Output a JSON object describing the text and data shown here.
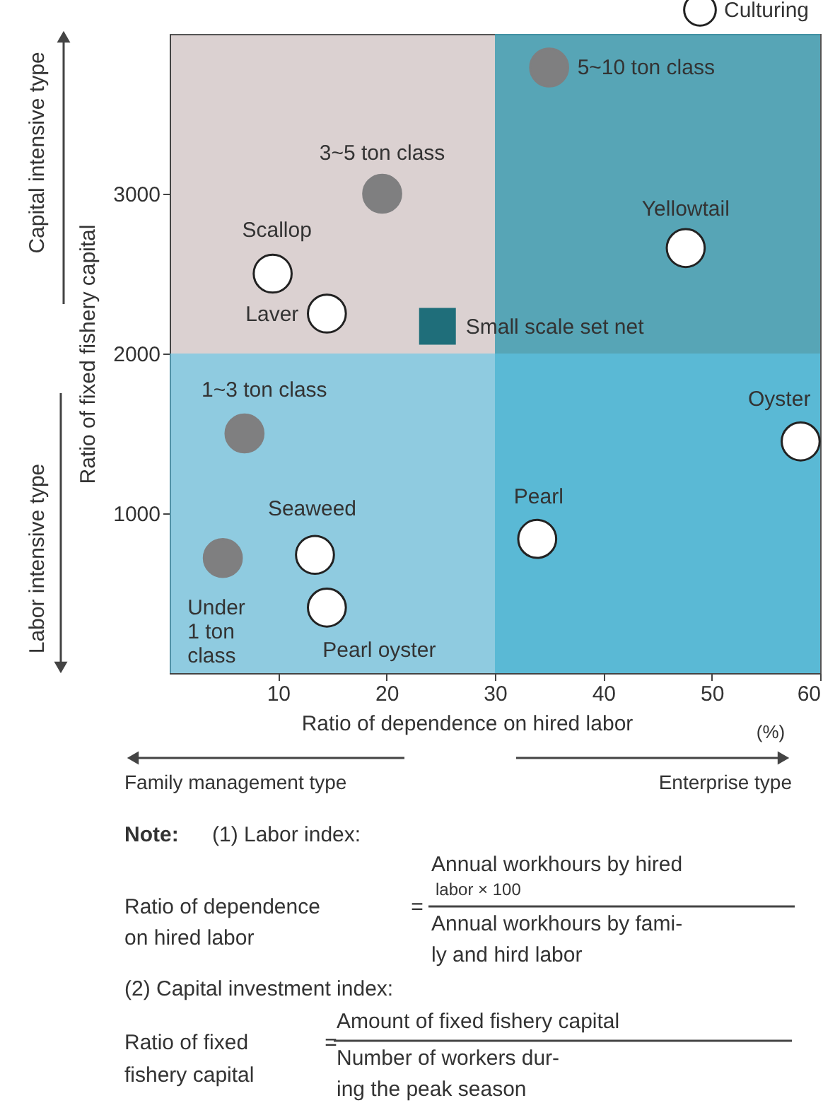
{
  "chart_data": {
    "type": "scatter",
    "xlabel": "Ratio of dependence on hired labor",
    "ylabel": "Ratio of fixed fishery capital",
    "xlim": [
      0,
      60
    ],
    "xticks": [
      10,
      20,
      30,
      40,
      50,
      60
    ],
    "ylim": [
      0,
      4000
    ],
    "yticks": [
      {
        "value": 1000,
        "label": "1000"
      },
      {
        "value": 2000,
        "label": "2000"
      },
      {
        "value": 3000,
        "label": "3000"
      }
    ],
    "grid": false,
    "legend": "top right",
    "bands": [
      {
        "axis": "x",
        "from": 30,
        "to": 60,
        "color": "#3f9db2"
      },
      {
        "axis": "y",
        "from": 0,
        "to": 2000,
        "color": "#5cc7ea"
      }
    ],
    "series": [
      {
        "color": "#7f7f80",
        "marker": "circle",
        "x": [
          35,
          19.6,
          6.9,
          4.9
        ],
        "values": [
          3790,
          3000,
          1500,
          720
        ]
      },
      {
        "name": "Culturing",
        "color": "#ffffff",
        "marker": "circle",
        "x": [
          9.5,
          14.5,
          47.6,
          58.2,
          13.4,
          14.5,
          33.9
        ],
        "values": [
          2500,
          2250,
          2660,
          1450,
          740,
          410,
          840
        ]
      },
      {
        "name": "Small scale set net",
        "color": "#1f6e7a",
        "marker": "square",
        "x": [
          24.7
        ],
        "values": [
          2170
        ]
      }
    ],
    "annotations": [
      {
        "text": "5~10 ton class",
        "x": 35,
        "y": 3790
      },
      {
        "text": "3~5 ton class",
        "x": 19.6,
        "y": 3000
      },
      {
        "text": "Scallop",
        "x": 9.5,
        "y": 2500
      },
      {
        "text": "Laver",
        "x": 14.5,
        "y": 2250
      },
      {
        "text": "Yellowtail",
        "x": 47.6,
        "y": 2660
      },
      {
        "text": "1~3 ton class",
        "x": 6.9,
        "y": 1500
      },
      {
        "text": "Oyster",
        "x": 58.2,
        "y": 1450
      },
      {
        "text": "Under 1 ton class",
        "x": 4.9,
        "y": 720
      },
      {
        "text": "Seaweed",
        "x": 13.4,
        "y": 740
      },
      {
        "text": "Pearl oyster",
        "x": 14.5,
        "y": 410
      },
      {
        "text": "Pearl",
        "x": 33.9,
        "y": 840
      },
      "Capital intensive type",
      "Labor intensive type",
      "(%)",
      "Family management type",
      "Enterprise type",
      "Note:",
      "(1) Labor index:",
      "Ratio of dependence",
      "on hired labor",
      "=",
      "Annual workhours by hired",
      "labor × 100",
      "Annual workhours by fami-",
      "ly and hird labor",
      "(2) Capital investment index:",
      "Ratio of fixed",
      "fishery capital",
      "=",
      "Amount of fixed fishery capital",
      "Number of workers dur-",
      "ing the peak season"
    ]
  }
}
